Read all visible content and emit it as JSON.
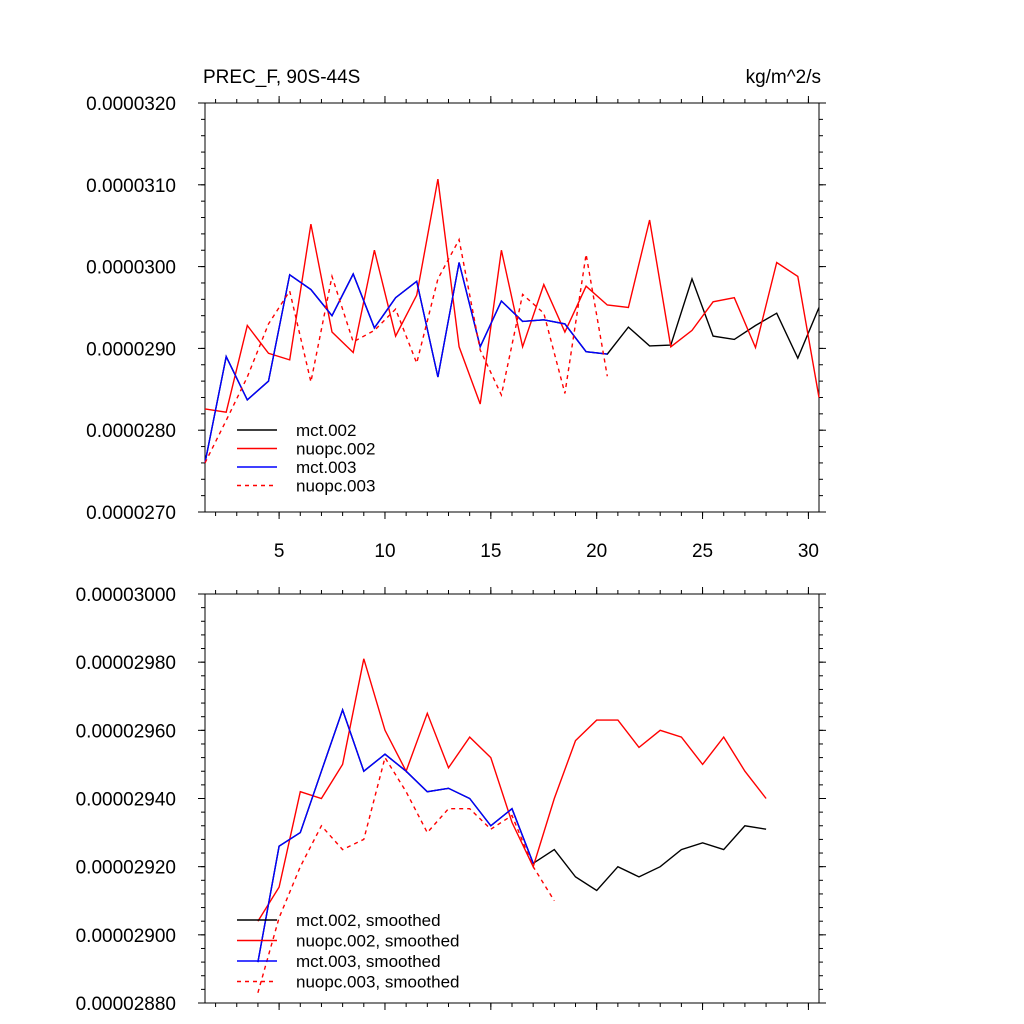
{
  "chart_data": [
    {
      "type": "line",
      "title_left": "PREC_F, 90S-44S",
      "title_right": "kg/m^2/s",
      "xlabel": "",
      "ylabel": "",
      "xlim": [
        1.5,
        30.5
      ],
      "ylim": [
        2.7e-05,
        3.2e-05
      ],
      "grid": false,
      "legend_position": "bottom-left",
      "x_ticks": [
        5,
        10,
        15,
        20,
        25,
        30
      ],
      "x_tick_labels": [
        "5",
        "10",
        "15",
        "20",
        "25",
        "30"
      ],
      "y_ticks": [
        2.7e-05,
        2.8e-05,
        2.9e-05,
        3e-05,
        3.1e-05,
        3.2e-05
      ],
      "y_tick_labels": [
        "0.0000270",
        "0.0000280",
        "0.0000290",
        "0.0000300",
        "0.0000310",
        "0.0000320"
      ],
      "series": [
        {
          "name": "mct.002",
          "color": "#000000",
          "dash": "solid",
          "x": [
            1.5,
            2.5,
            3.5,
            4.5,
            5.5,
            6.5,
            7.5,
            8.5,
            9.5,
            10.5,
            11.5,
            12.5,
            13.5,
            14.5,
            15.5,
            16.5,
            17.5,
            18.5,
            19.5,
            20.5,
            21.5,
            22.5,
            23.5,
            24.5,
            25.5,
            26.5,
            27.5,
            28.5,
            29.5,
            30.5
          ],
          "values": [
            2.76e-05,
            2.89e-05,
            2.837e-05,
            2.86e-05,
            2.99e-05,
            2.972e-05,
            2.94e-05,
            2.991e-05,
            2.925e-05,
            2.962e-05,
            2.982e-05,
            2.865e-05,
            3.005e-05,
            2.902e-05,
            2.958e-05,
            2.933e-05,
            2.935e-05,
            2.93e-05,
            2.896e-05,
            2.893e-05,
            2.926e-05,
            2.903e-05,
            2.904e-05,
            2.985e-05,
            2.915e-05,
            2.911e-05,
            2.928e-05,
            2.943e-05,
            2.888e-05,
            2.95e-05
          ]
        },
        {
          "name": "nuopc.002",
          "color": "#ff0000",
          "dash": "solid",
          "x": [
            1.5,
            2.5,
            3.5,
            4.5,
            5.5,
            6.5,
            7.5,
            8.5,
            9.5,
            10.5,
            11.5,
            12.5,
            13.5,
            14.5,
            15.5,
            16.5,
            17.5,
            18.5,
            19.5,
            20.5,
            21.5,
            22.5,
            23.5,
            24.5,
            25.5,
            26.5,
            27.5,
            28.5,
            29.5,
            30.5
          ],
          "values": [
            2.826e-05,
            2.822e-05,
            2.928e-05,
            2.894e-05,
            2.886e-05,
            3.052e-05,
            2.92e-05,
            2.895e-05,
            3.02e-05,
            2.915e-05,
            2.965e-05,
            3.107e-05,
            2.902e-05,
            2.832e-05,
            3.02e-05,
            2.902e-05,
            2.978e-05,
            2.92e-05,
            2.976e-05,
            2.953e-05,
            2.95e-05,
            3.057e-05,
            2.902e-05,
            2.922e-05,
            2.957e-05,
            2.962e-05,
            2.901e-05,
            3.005e-05,
            2.988e-05,
            2.84e-05
          ]
        },
        {
          "name": "mct.003",
          "color": "#0000ff",
          "dash": "solid",
          "x": [
            1.5,
            2.5,
            3.5,
            4.5,
            5.5,
            6.5,
            7.5,
            8.5,
            9.5,
            10.5,
            11.5,
            12.5,
            13.5,
            14.5,
            15.5,
            16.5,
            17.5,
            18.5,
            19.5,
            20.5
          ],
          "values": [
            2.76e-05,
            2.89e-05,
            2.837e-05,
            2.86e-05,
            2.99e-05,
            2.972e-05,
            2.94e-05,
            2.991e-05,
            2.925e-05,
            2.962e-05,
            2.982e-05,
            2.865e-05,
            3.005e-05,
            2.902e-05,
            2.958e-05,
            2.933e-05,
            2.935e-05,
            2.93e-05,
            2.896e-05,
            2.893e-05
          ]
        },
        {
          "name": "nuopc.003",
          "color": "#ff0000",
          "dash": "dashed",
          "x": [
            1.5,
            2.5,
            3.5,
            4.5,
            5.5,
            6.5,
            7.5,
            8.5,
            9.5,
            10.5,
            11.5,
            12.5,
            13.5,
            14.5,
            15.5,
            16.5,
            17.5,
            18.5,
            19.5,
            20.5
          ],
          "values": [
            2.76e-05,
            2.812e-05,
            2.865e-05,
            2.93e-05,
            2.97e-05,
            2.859e-05,
            2.988e-05,
            2.908e-05,
            2.922e-05,
            2.948e-05,
            2.882e-05,
            2.985e-05,
            3.033e-05,
            2.898e-05,
            2.843e-05,
            2.966e-05,
            2.943e-05,
            2.845e-05,
            3.015e-05,
            2.866e-05
          ]
        }
      ]
    },
    {
      "type": "line",
      "xlabel": "",
      "ylabel": "",
      "xlim": [
        1.5,
        30.5
      ],
      "ylim": [
        2.88e-05,
        3e-05
      ],
      "grid": false,
      "legend_position": "bottom-left",
      "x_ticks": [
        5,
        10,
        15,
        20,
        25,
        30
      ],
      "y_ticks": [
        2.88e-05,
        2.9e-05,
        2.92e-05,
        2.94e-05,
        2.96e-05,
        2.98e-05,
        3e-05
      ],
      "y_tick_labels": [
        "0.00002880",
        "0.00002900",
        "0.00002920",
        "0.00002940",
        "0.00002960",
        "0.00002980",
        "0.00003000"
      ],
      "series": [
        {
          "name": "mct.002, smoothed",
          "color": "#000000",
          "dash": "solid",
          "x": [
            4,
            5,
            6,
            7,
            8,
            9,
            10,
            11,
            12,
            13,
            14,
            15,
            16,
            17,
            18,
            19,
            20,
            21,
            22,
            23,
            24,
            25,
            26,
            27,
            28
          ],
          "values": [
            2.892e-05,
            2.926e-05,
            2.93e-05,
            2.948e-05,
            2.966e-05,
            2.948e-05,
            2.953e-05,
            2.948e-05,
            2.942e-05,
            2.943e-05,
            2.94e-05,
            2.932e-05,
            2.937e-05,
            2.921e-05,
            2.925e-05,
            2.917e-05,
            2.913e-05,
            2.92e-05,
            2.917e-05,
            2.92e-05,
            2.925e-05,
            2.927e-05,
            2.925e-05,
            2.932e-05,
            2.931e-05
          ]
        },
        {
          "name": "nuopc.002, smoothed",
          "color": "#ff0000",
          "dash": "solid",
          "x": [
            4,
            5,
            6,
            7,
            8,
            9,
            10,
            11,
            12,
            13,
            14,
            15,
            16,
            17,
            18,
            19,
            20,
            21,
            22,
            23,
            24,
            25,
            26,
            27,
            28
          ],
          "values": [
            2.904e-05,
            2.914e-05,
            2.942e-05,
            2.94e-05,
            2.95e-05,
            2.981e-05,
            2.96e-05,
            2.948e-05,
            2.965e-05,
            2.949e-05,
            2.958e-05,
            2.952e-05,
            2.933e-05,
            2.92e-05,
            2.94e-05,
            2.957e-05,
            2.963e-05,
            2.963e-05,
            2.955e-05,
            2.96e-05,
            2.958e-05,
            2.95e-05,
            2.958e-05,
            2.948e-05,
            2.94e-05
          ]
        },
        {
          "name": "mct.003, smoothed",
          "color": "#0000ff",
          "dash": "solid",
          "x": [
            4,
            5,
            6,
            7,
            8,
            9,
            10,
            11,
            12,
            13,
            14,
            15,
            16,
            17
          ],
          "values": [
            2.892e-05,
            2.926e-05,
            2.93e-05,
            2.948e-05,
            2.966e-05,
            2.948e-05,
            2.953e-05,
            2.948e-05,
            2.942e-05,
            2.943e-05,
            2.94e-05,
            2.932e-05,
            2.937e-05,
            2.921e-05
          ]
        },
        {
          "name": "nuopc.003, smoothed",
          "color": "#ff0000",
          "dash": "dashed",
          "x": [
            4,
            5,
            6,
            7,
            8,
            9,
            10,
            11,
            12,
            13,
            14,
            15,
            16,
            17,
            18
          ],
          "values": [
            2.883e-05,
            2.905e-05,
            2.92e-05,
            2.932e-05,
            2.925e-05,
            2.928e-05,
            2.952e-05,
            2.942e-05,
            2.93e-05,
            2.937e-05,
            2.937e-05,
            2.931e-05,
            2.935e-05,
            2.92e-05,
            2.91e-05
          ]
        }
      ]
    }
  ]
}
